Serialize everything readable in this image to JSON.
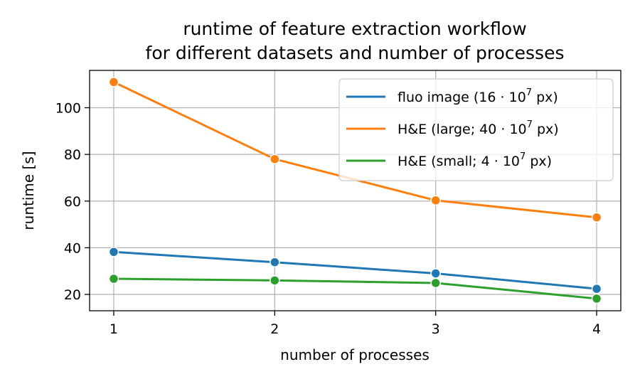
{
  "chart_data": {
    "type": "line",
    "title": "runtime of feature extraction workflow",
    "subtitle": "for different datasets and number of processes",
    "xlabel": "number of processes",
    "ylabel": "runtime [s]",
    "x": [
      1,
      2,
      3,
      4
    ],
    "x_ticks": [
      "1",
      "2",
      "3",
      "4"
    ],
    "y_ticks": [
      "20",
      "40",
      "60",
      "80",
      "100"
    ],
    "xlim": [
      0.85,
      4.15
    ],
    "ylim": [
      13,
      116
    ],
    "grid": true,
    "legend_position": "top-right",
    "series": [
      {
        "name": "fluo image (16·10^7 px)",
        "legend_parts": [
          "fluo image (16 · 10",
          "7",
          " px)"
        ],
        "color": "#1f77b4",
        "values": [
          38.2,
          33.8,
          29.0,
          22.4
        ]
      },
      {
        "name": "H&E (large; 40·10^7 px)",
        "legend_parts": [
          "H&E (large; 40 · 10",
          "7",
          " px)"
        ],
        "color": "#ff7f0e",
        "values": [
          111.0,
          78.0,
          60.3,
          53.0
        ]
      },
      {
        "name": "H&E (small; 4·10^7 px)",
        "legend_parts": [
          "H&E (small; 4 · 10",
          "7",
          " px)"
        ],
        "color": "#2ca02c",
        "values": [
          26.7,
          26.0,
          24.9,
          18.2
        ]
      }
    ]
  }
}
